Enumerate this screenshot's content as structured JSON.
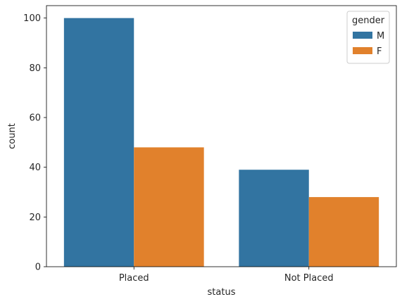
{
  "chart_data": {
    "type": "bar",
    "categories": [
      "Placed",
      "Not Placed"
    ],
    "series": [
      {
        "name": "M",
        "values": [
          100,
          39
        ],
        "color": "#3274a1"
      },
      {
        "name": "F",
        "values": [
          48,
          28
        ],
        "color": "#e1812c"
      }
    ],
    "title": "",
    "xlabel": "status",
    "ylabel": "count",
    "ylim": [
      0,
      105
    ],
    "yticks": [
      0,
      20,
      40,
      60,
      80,
      100
    ],
    "legend": {
      "title": "gender",
      "placement": "top-right"
    },
    "grid": false
  }
}
